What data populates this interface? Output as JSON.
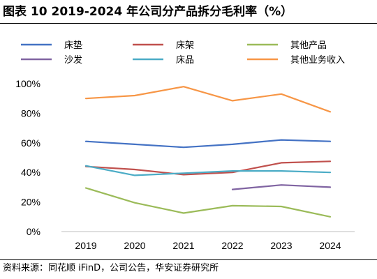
{
  "header": {
    "title": "图表 10 2019-2024 年公司分产品拆分毛利率（%）"
  },
  "footer": {
    "source": "资料来源：同花顺 iFinD，公司公告，华安证券研究所"
  },
  "chart_data": {
    "type": "line",
    "title": "",
    "xlabel": "",
    "ylabel": "",
    "categories": [
      "2019",
      "2020",
      "2021",
      "2022",
      "2023",
      "2024"
    ],
    "ylim": [
      0,
      100
    ],
    "yticks": [
      "0%",
      "20%",
      "40%",
      "60%",
      "80%",
      "100%"
    ],
    "grid": false,
    "legend_position": "top",
    "series": [
      {
        "name": "床垫",
        "color": "#4472C4",
        "values": [
          61,
          59,
          57,
          59,
          62,
          61
        ]
      },
      {
        "name": "床架",
        "color": "#C0504D",
        "values": [
          44,
          42,
          38.5,
          40,
          46.5,
          47.5
        ]
      },
      {
        "name": "其他产品",
        "color": "#9BBB59",
        "values": [
          29.5,
          19.5,
          12.5,
          17.5,
          17,
          10
        ]
      },
      {
        "name": "沙发",
        "color": "#8064A2",
        "values": [
          null,
          null,
          null,
          28.5,
          31.5,
          30
        ]
      },
      {
        "name": "床品",
        "color": "#4BACC6",
        "values": [
          44.5,
          38,
          39.5,
          41,
          41,
          40
        ]
      },
      {
        "name": "其他业务收入",
        "color": "#F79646",
        "values": [
          90,
          92,
          98,
          88.5,
          93,
          81
        ]
      }
    ]
  }
}
